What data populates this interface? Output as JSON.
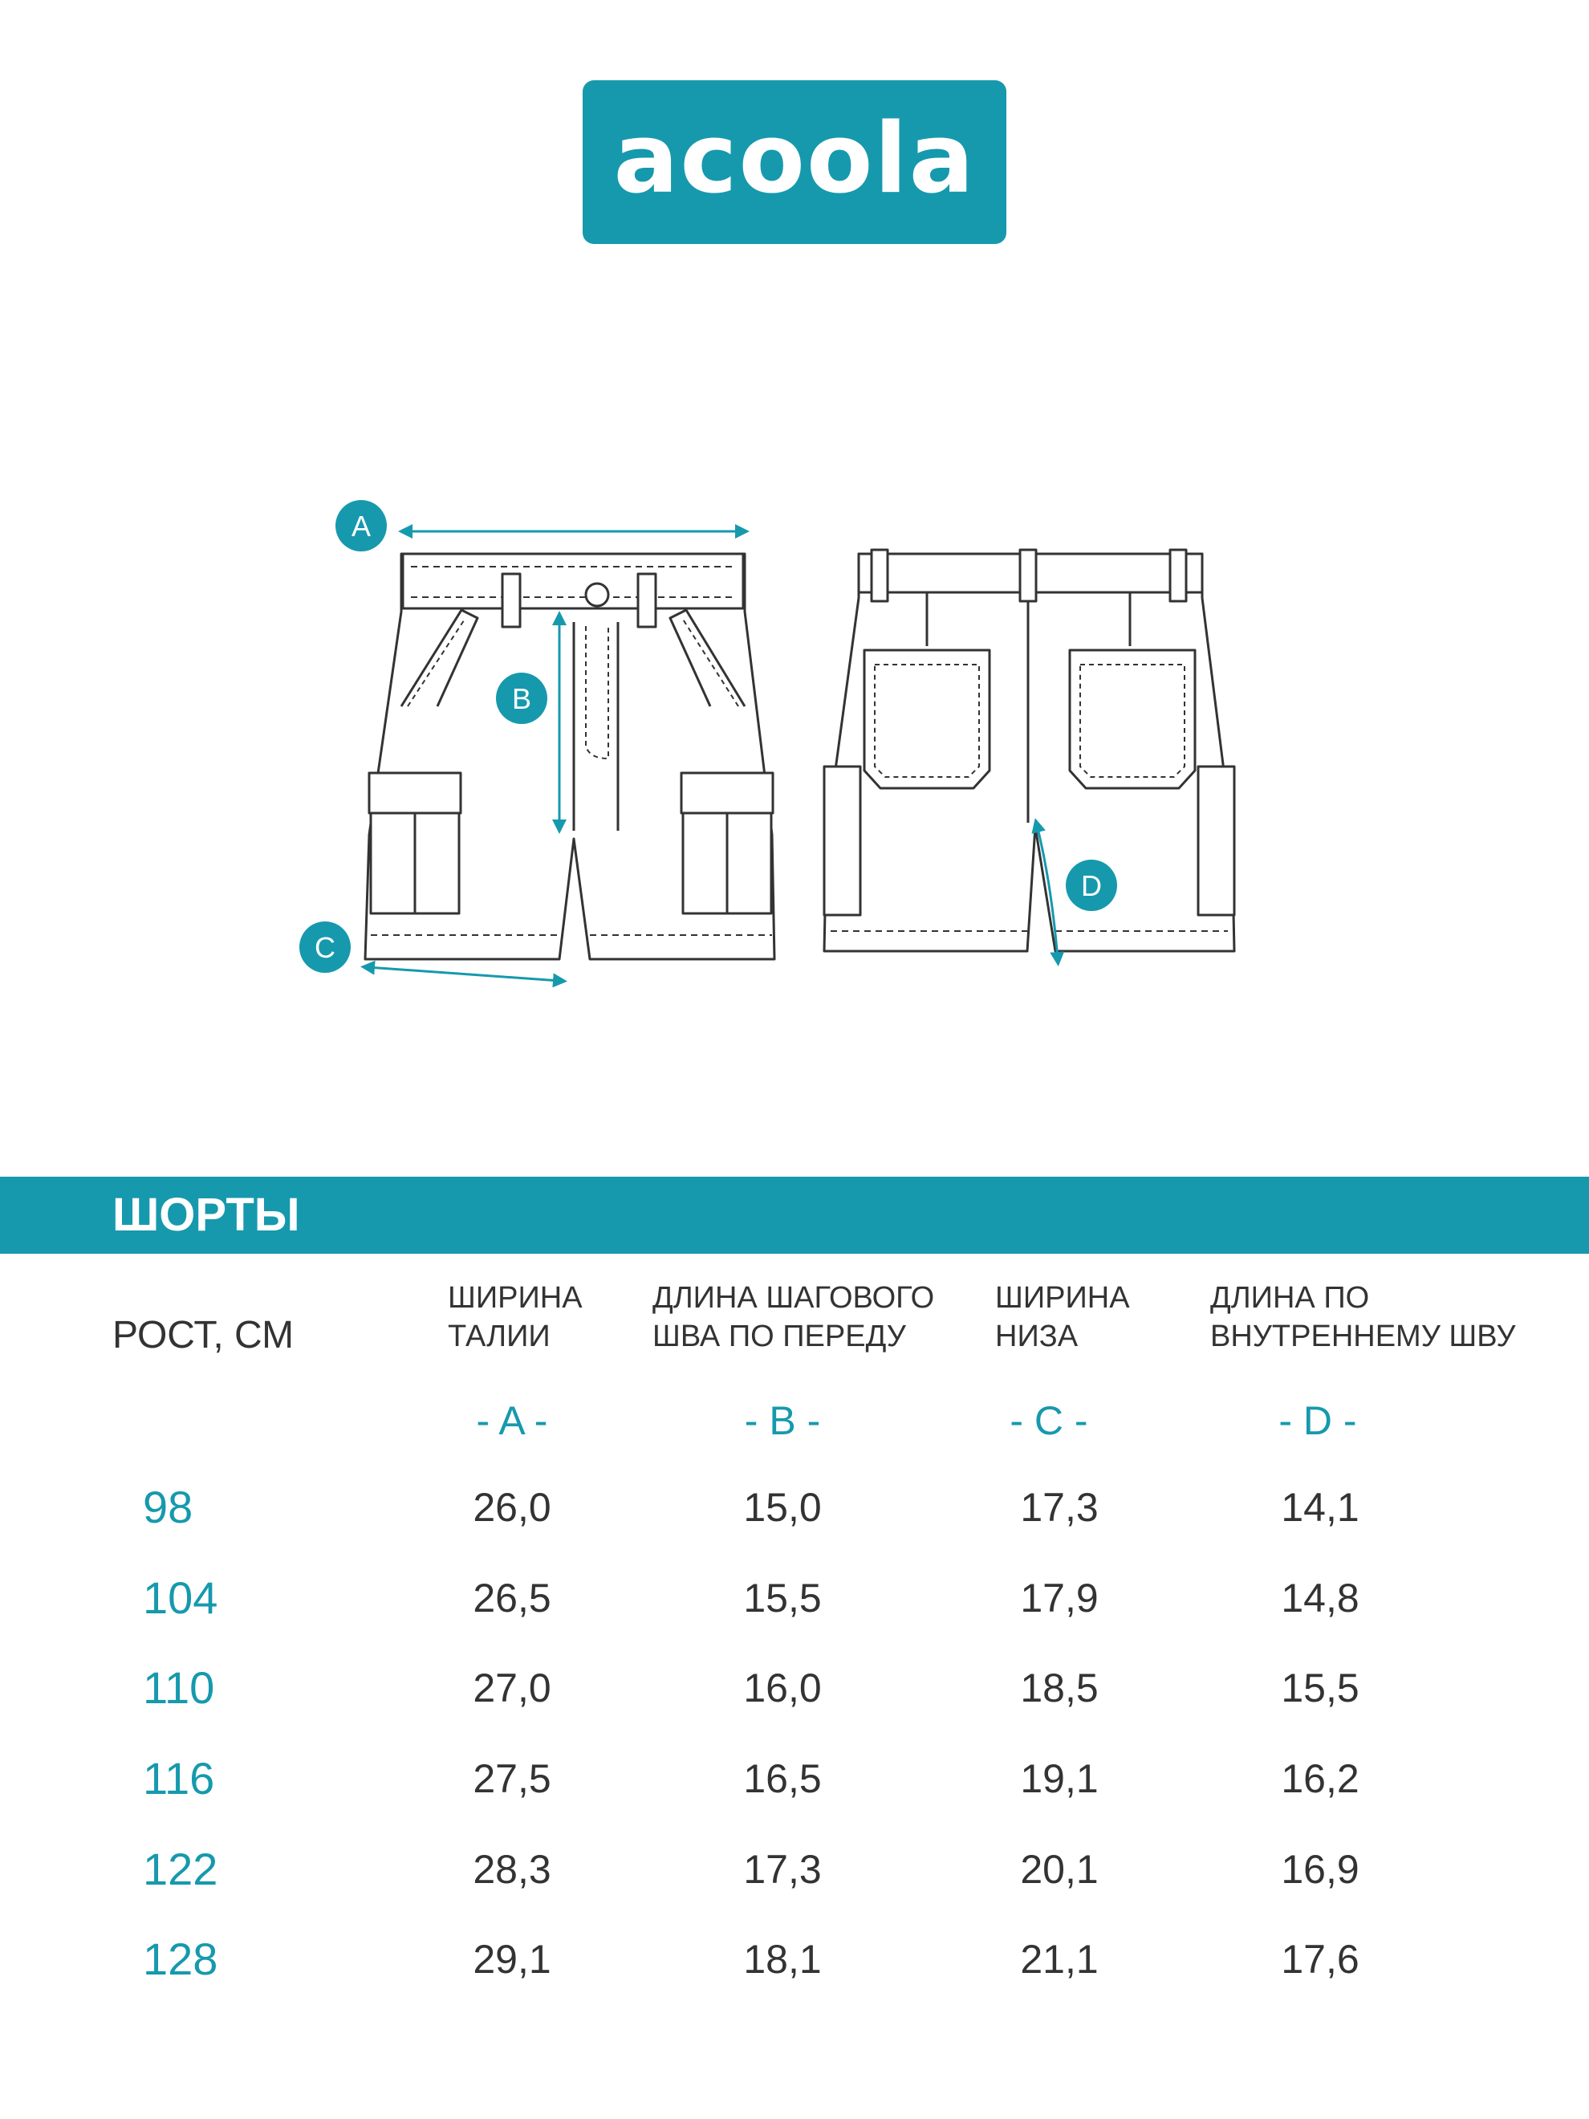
{
  "brand": {
    "logo_text": "acoola",
    "accent_color": "#1699ad"
  },
  "diagram": {
    "labels": {
      "a": "A",
      "b": "B",
      "c": "C",
      "d": "D"
    },
    "description_icons": [
      "shorts-front-view",
      "shorts-back-view"
    ]
  },
  "table": {
    "title": "ШОРТЫ",
    "size_header": "РОСТ, СМ",
    "columns": [
      {
        "header": "ШИРИНА\nТАЛИИ",
        "letter": "- A -"
      },
      {
        "header": "ДЛИНА ШАГОВОГО\nШВА ПО ПЕРЕДУ",
        "letter": "- B -"
      },
      {
        "header": "ШИРИНА\nНИЗА",
        "letter": "- C -"
      },
      {
        "header": "ДЛИНА ПО\nВНУТРЕННЕМУ ШВУ",
        "letter": "- D -"
      }
    ],
    "rows": [
      {
        "size": "98",
        "a": "26,0",
        "b": "15,0",
        "c": "17,3",
        "d": "14,1"
      },
      {
        "size": "104",
        "a": "26,5",
        "b": "15,5",
        "c": "17,9",
        "d": "14,8"
      },
      {
        "size": "110",
        "a": "27,0",
        "b": "16,0",
        "c": "18,5",
        "d": "15,5"
      },
      {
        "size": "116",
        "a": "27,5",
        "b": "16,5",
        "c": "19,1",
        "d": "16,2"
      },
      {
        "size": "122",
        "a": "28,3",
        "b": "17,3",
        "c": "20,1",
        "d": "16,9"
      },
      {
        "size": "128",
        "a": "29,1",
        "b": "18,1",
        "c": "21,1",
        "d": "17,6"
      }
    ]
  }
}
